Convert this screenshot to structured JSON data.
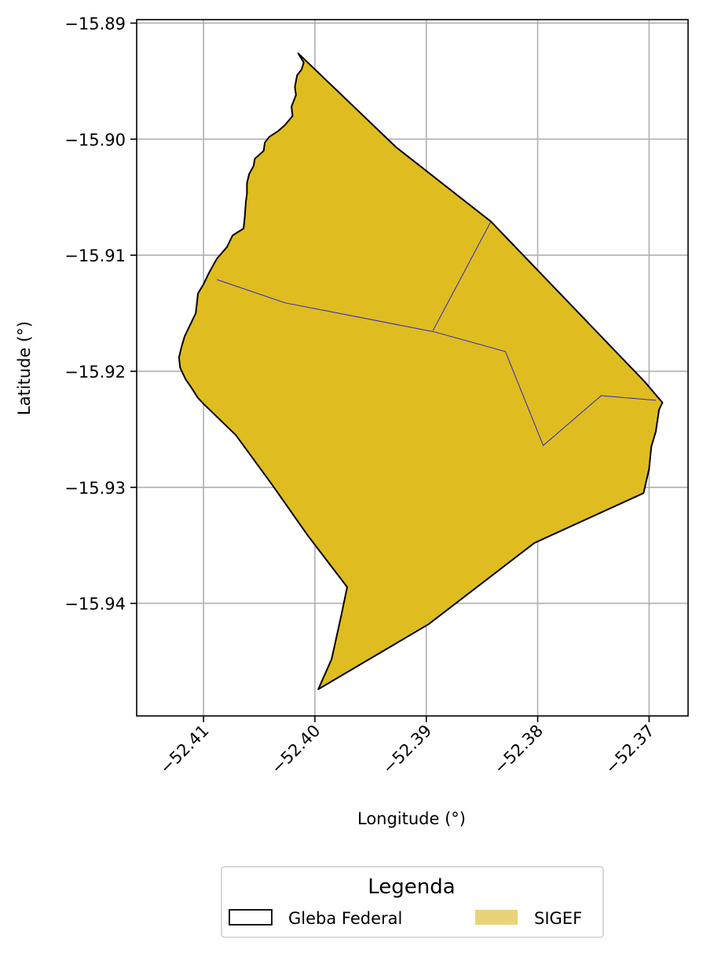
{
  "chart_data": {
    "type": "map",
    "xlabel": "Longitude (°)",
    "ylabel": "Latitude (°)",
    "xlim": [
      -52.416,
      -52.3665
    ],
    "ylim": [
      -15.9497,
      -15.8897
    ],
    "grid": true,
    "x_ticks": [
      -52.41,
      -52.4,
      -52.39,
      -52.38,
      -52.37
    ],
    "x_tick_labels": [
      "−52.41",
      "−52.40",
      "−52.39",
      "−52.38",
      "−52.37"
    ],
    "y_ticks": [
      -15.89,
      -15.9,
      -15.91,
      -15.92,
      -15.93,
      -15.94
    ],
    "y_tick_labels": [
      "−15.89",
      "−15.90",
      "−15.91",
      "−15.92",
      "−15.93",
      "−15.94"
    ],
    "gleba_federal_outline": [
      [
        -52.4015,
        -15.8926
      ],
      [
        -52.401,
        -15.8934
      ],
      [
        -52.4012,
        -15.894
      ],
      [
        -52.4016,
        -15.8945
      ],
      [
        -52.4018,
        -15.8955
      ],
      [
        -52.4017,
        -15.8962
      ],
      [
        -52.4021,
        -15.8972
      ],
      [
        -52.402,
        -15.898
      ],
      [
        -52.4027,
        -15.8988
      ],
      [
        -52.4033,
        -15.8993
      ],
      [
        -52.4041,
        -15.8998
      ],
      [
        -52.4045,
        -15.9003
      ],
      [
        -52.4046,
        -15.901
      ],
      [
        -52.4054,
        -15.9017
      ],
      [
        -52.4055,
        -15.9023
      ],
      [
        -52.4059,
        -15.903
      ],
      [
        -52.4061,
        -15.9038
      ],
      [
        -52.4061,
        -15.9047
      ],
      [
        -52.4062,
        -15.9054
      ],
      [
        -52.4063,
        -15.9067
      ],
      [
        -52.4064,
        -15.9077
      ],
      [
        -52.4074,
        -15.9083
      ],
      [
        -52.4079,
        -15.9093
      ],
      [
        -52.4088,
        -15.9103
      ],
      [
        -52.4095,
        -15.9115
      ],
      [
        -52.41,
        -15.9125
      ],
      [
        -52.4105,
        -15.9133
      ],
      [
        -52.4106,
        -15.9142
      ],
      [
        -52.4107,
        -15.915
      ],
      [
        -52.4112,
        -15.916
      ],
      [
        -52.4117,
        -15.917
      ],
      [
        -52.412,
        -15.918
      ],
      [
        -52.4122,
        -15.9188
      ],
      [
        -52.4121,
        -15.9197
      ],
      [
        -52.4116,
        -15.9207
      ],
      [
        -52.4111,
        -15.9214
      ],
      [
        -52.4105,
        -15.9223
      ],
      [
        -52.4099,
        -15.9229
      ],
      [
        -52.4071,
        -15.9255
      ],
      [
        -52.4039,
        -15.9297
      ],
      [
        -52.4006,
        -15.9342
      ],
      [
        -52.3971,
        -15.9386
      ],
      [
        -52.3976,
        -15.9409
      ],
      [
        -52.3985,
        -15.9448
      ],
      [
        -52.3997,
        -15.9474
      ],
      [
        -52.3898,
        -15.9418
      ],
      [
        -52.3803,
        -15.9348
      ],
      [
        -52.3705,
        -15.9305
      ],
      [
        -52.37,
        -15.9284
      ],
      [
        -52.3698,
        -15.9265
      ],
      [
        -52.3694,
        -15.9252
      ],
      [
        -52.3691,
        -15.9233
      ],
      [
        -52.3688,
        -15.9227
      ],
      [
        -52.3704,
        -15.9209
      ],
      [
        -52.3842,
        -15.9071
      ],
      [
        -52.3927,
        -15.9007
      ],
      [
        -52.4015,
        -15.8926
      ]
    ],
    "internal_division_lines": [
      [
        [
          -52.4088,
          -15.9121
        ],
        [
          -52.4027,
          -15.9141
        ],
        [
          -52.3893,
          -15.9166
        ],
        [
          -52.3829,
          -15.9183
        ],
        [
          -52.3795,
          -15.9264
        ],
        [
          -52.3743,
          -15.9221
        ],
        [
          -52.3694,
          -15.9225
        ]
      ],
      [
        [
          -52.3894,
          -15.9165
        ],
        [
          -52.3842,
          -15.9071
        ]
      ]
    ],
    "legend": {
      "title": "Legenda",
      "placement": "bottom-center, below axes",
      "entries": [
        {
          "label": "Gleba Federal",
          "style": "outline"
        },
        {
          "label": "SIGEF",
          "style": "fill"
        }
      ]
    },
    "colors": {
      "sigef_fill": "#dfbd20",
      "sigef_legend": "#e8d37a",
      "outline": "#000000",
      "division_lines": "#2b24c8",
      "grid": "#b0b0b0"
    }
  }
}
